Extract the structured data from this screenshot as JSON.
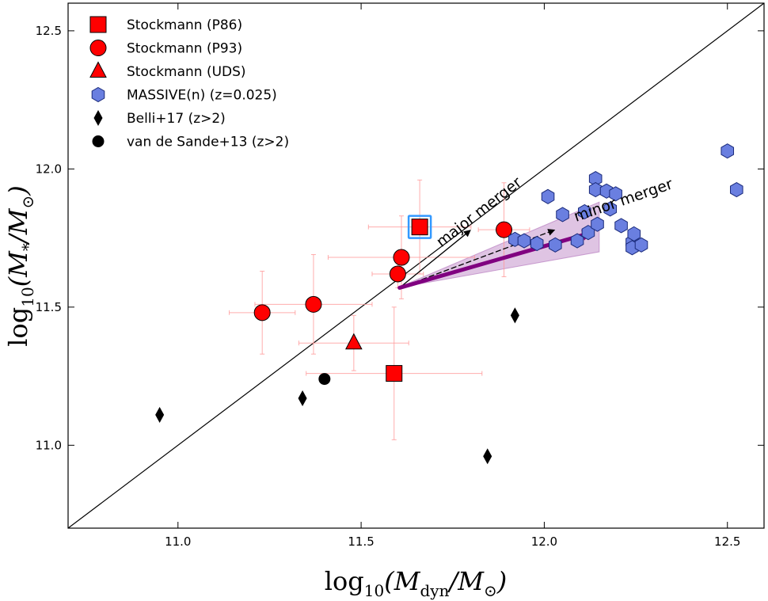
{
  "chart_data": {
    "type": "scatter",
    "xlabel": "log10(Mdyn/M⊙)",
    "ylabel": "log10(M*/M⊙)",
    "xlim": [
      10.7,
      12.6
    ],
    "ylim": [
      10.7,
      12.6
    ],
    "xticks": [
      "11.0",
      "11.5",
      "12.0",
      "12.5"
    ],
    "yticks": [
      "11.0",
      "11.5",
      "12.0",
      "12.5"
    ],
    "xtick_values": [
      11.0,
      11.5,
      12.0,
      12.5
    ],
    "ytick_values": [
      11.0,
      11.5,
      12.0,
      12.5
    ],
    "legend_position": "top-left",
    "legend": [
      {
        "label": "Stockmann (P86)",
        "marker": "square",
        "color": "#ff0000"
      },
      {
        "label": "Stockmann (P93)",
        "marker": "circle",
        "color": "#ff0000"
      },
      {
        "label": "Stockmann (UDS)",
        "marker": "triangle",
        "color": "#ff0000"
      },
      {
        "label": "MASSIVE(n) (z=0.025)",
        "marker": "hexagon",
        "color": "#6a7fe0"
      },
      {
        "label": "Belli+17 (z>2)",
        "marker": "diamond",
        "color": "#000000"
      },
      {
        "label": "van de Sande+13 (z>2)",
        "marker": "circle",
        "color": "#000000"
      }
    ],
    "series": [
      {
        "name": "Stockmann (P86)",
        "marker": "square",
        "color": "#ff0000",
        "points": [
          {
            "x": 11.66,
            "y": 11.79,
            "xerr": [
              0.14,
              0.14
            ],
            "yerr": [
              0.17,
              0.17
            ],
            "highlight": true
          },
          {
            "x": 11.59,
            "y": 11.26,
            "xerr": [
              0.24,
              0.24
            ],
            "yerr": [
              0.24,
              0.24
            ]
          }
        ]
      },
      {
        "name": "Stockmann (P93)",
        "marker": "circle",
        "color": "#ff0000",
        "points": [
          {
            "x": 11.23,
            "y": 11.48,
            "xerr": [
              0.09,
              0.09
            ],
            "yerr": [
              0.15,
              0.15
            ]
          },
          {
            "x": 11.37,
            "y": 11.51,
            "xerr": [
              0.16,
              0.16
            ],
            "yerr": [
              0.18,
              0.18
            ]
          },
          {
            "x": 11.6,
            "y": 11.62,
            "xerr": [
              0.07,
              0.07
            ],
            "yerr": [
              0.05,
              0.05
            ]
          },
          {
            "x": 11.61,
            "y": 11.68,
            "xerr": [
              0.2,
              0.2
            ],
            "yerr": [
              0.15,
              0.15
            ]
          },
          {
            "x": 11.89,
            "y": 11.78,
            "xerr": [
              0.07,
              0.07
            ],
            "yerr": [
              0.17,
              0.17
            ]
          }
        ]
      },
      {
        "name": "Stockmann (UDS)",
        "marker": "triangle",
        "color": "#ff0000",
        "points": [
          {
            "x": 11.48,
            "y": 11.37,
            "xerr": [
              0.15,
              0.15
            ],
            "yerr": [
              0.1,
              0.1
            ]
          }
        ]
      },
      {
        "name": "MASSIVE(n) (z=0.025)",
        "marker": "hexagon",
        "color": "#6a7fe0",
        "points": [
          {
            "x": 11.92,
            "y": 11.745
          },
          {
            "x": 11.945,
            "y": 11.74
          },
          {
            "x": 11.98,
            "y": 11.73
          },
          {
            "x": 12.01,
            "y": 11.9
          },
          {
            "x": 12.03,
            "y": 11.725
          },
          {
            "x": 12.05,
            "y": 11.835
          },
          {
            "x": 12.09,
            "y": 11.74
          },
          {
            "x": 12.11,
            "y": 11.845
          },
          {
            "x": 12.12,
            "y": 11.77
          },
          {
            "x": 12.14,
            "y": 11.965
          },
          {
            "x": 12.14,
            "y": 11.925
          },
          {
            "x": 12.145,
            "y": 11.8
          },
          {
            "x": 12.17,
            "y": 11.92
          },
          {
            "x": 12.18,
            "y": 11.855
          },
          {
            "x": 12.195,
            "y": 11.91
          },
          {
            "x": 12.21,
            "y": 11.795
          },
          {
            "x": 12.24,
            "y": 11.735
          },
          {
            "x": 12.24,
            "y": 11.715
          },
          {
            "x": 12.245,
            "y": 11.765
          },
          {
            "x": 12.265,
            "y": 11.725
          },
          {
            "x": 12.5,
            "y": 12.065
          },
          {
            "x": 12.525,
            "y": 11.925
          }
        ]
      },
      {
        "name": "Belli+17 (z>2)",
        "marker": "diamond",
        "color": "#000000",
        "points": [
          {
            "x": 10.95,
            "y": 11.11
          },
          {
            "x": 11.34,
            "y": 11.17
          },
          {
            "x": 11.845,
            "y": 10.96
          },
          {
            "x": 11.92,
            "y": 11.47
          }
        ]
      },
      {
        "name": "van de Sande+13 (z>2)",
        "marker": "circle",
        "color": "#000000",
        "points": [
          {
            "x": 11.4,
            "y": 11.24
          }
        ]
      }
    ],
    "one_to_one_line": {
      "from": [
        10.7,
        10.7
      ],
      "to": [
        12.6,
        12.6
      ]
    },
    "annotations": [
      {
        "text": "major merger",
        "x": 11.83,
        "y": 11.83,
        "rotate": -38
      },
      {
        "text": "minor merger",
        "x": 12.22,
        "y": 11.87,
        "rotate": -19
      }
    ],
    "arrows": [
      {
        "name": "major-merger-arrow",
        "from": [
          11.605,
          11.57
        ],
        "to": [
          11.8,
          11.78
        ],
        "style": "solid",
        "color": "#000000"
      },
      {
        "name": "minor-merger-dashed-arrow",
        "from": [
          11.605,
          11.57
        ],
        "to": [
          12.03,
          11.78
        ],
        "style": "dashed",
        "color": "#000000"
      },
      {
        "name": "minor-merger-thick-arrow",
        "from": [
          11.605,
          11.57
        ],
        "to": [
          12.13,
          11.77
        ],
        "style": "thick",
        "color": "#800080"
      }
    ],
    "band": {
      "color": "#b87dc0",
      "polygon": [
        [
          11.6,
          11.57
        ],
        [
          12.15,
          11.88
        ],
        [
          12.15,
          11.7
        ],
        [
          11.6,
          11.57
        ]
      ]
    }
  }
}
